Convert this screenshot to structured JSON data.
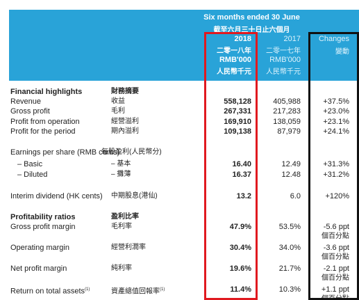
{
  "header": {
    "period_en": "Six months ended 30 June",
    "period_zh": "截至六月三十日止六個月",
    "col2018": {
      "year": "2018",
      "year_zh": "二零一八年",
      "unit": "RMB'000",
      "unit_zh": "人民幣千元"
    },
    "col2017": {
      "year": "2017",
      "year_zh": "二零一七年",
      "unit": "RMB'000",
      "unit_zh": "人民幣千元"
    },
    "changes": {
      "en": "Changes",
      "zh": "變動"
    }
  },
  "sections": {
    "financial": {
      "en": "Financial highlights",
      "zh": "財務摘要"
    },
    "profitability": {
      "en": "Profitability ratios",
      "zh": "盈利比率"
    }
  },
  "rows": {
    "revenue": {
      "en": "Revenue",
      "zh": "收益",
      "v2018": "558,128",
      "v2017": "405,988",
      "change": "+37.5%"
    },
    "gross": {
      "en": "Gross profit",
      "zh": "毛利",
      "v2018": "267,331",
      "v2017": "217,283",
      "change": "+23.0%"
    },
    "operation": {
      "en": "Profit from operation",
      "zh": "經營溢利",
      "v2018": "169,910",
      "v2017": "138,059",
      "change": "+23.1%"
    },
    "period": {
      "en": "Profit for the period",
      "zh": "期內溢利",
      "v2018": "109,138",
      "v2017": "87,979",
      "change": "+24.1%"
    },
    "eps": {
      "en": "Earnings per share (RMB cents)",
      "zh": "每股盈利(人民幣分)"
    },
    "basic": {
      "en": "– Basic",
      "zh": "– 基本",
      "v2018": "16.40",
      "v2017": "12.49",
      "change": "+31.3%"
    },
    "diluted": {
      "en": "– Diluted",
      "zh": "– 攤薄",
      "v2018": "16.37",
      "v2017": "12.48",
      "change": "+31.2%"
    },
    "dividend": {
      "en": "Interim dividend (HK cents)",
      "zh": "中期股息(港仙)",
      "v2018": "13.2",
      "v2017": "6.0",
      "change": "+120%"
    },
    "gpm": {
      "en": "Gross profit margin",
      "zh": "毛利率",
      "v2018": "47.9%",
      "v2017": "53.5%",
      "change": "-5.6 ppt",
      "change_zh": "個百分點"
    },
    "opm": {
      "en": "Operating margin",
      "zh": "經營利潤率",
      "v2018": "30.4%",
      "v2017": "34.0%",
      "change": "-3.6 ppt",
      "change_zh": "個百分點"
    },
    "npm": {
      "en": "Net profit margin",
      "zh": "純利率",
      "v2018": "19.6%",
      "v2017": "21.7%",
      "change": "-2.1 ppt",
      "change_zh": "個百分點"
    },
    "rota": {
      "en": "Return on total assets",
      "sup": "(1)",
      "zh": "資產總值回報率",
      "zh_sup": "(1)",
      "v2018": "11.4%",
      "v2017": "10.3%",
      "change": "+1.1 ppt",
      "change_zh": "個百分點"
    }
  },
  "colors": {
    "header_bg": "#29a3d8",
    "highlight_red": "#e0191f",
    "highlight_black": "#111111"
  }
}
